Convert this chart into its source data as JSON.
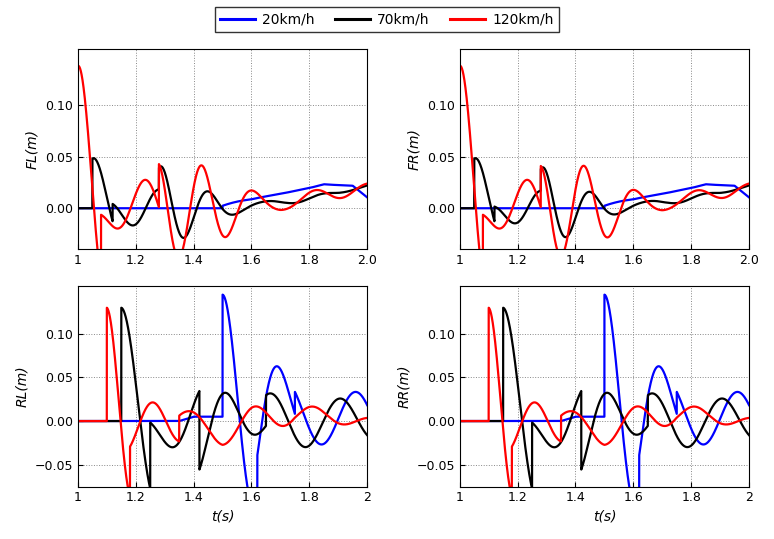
{
  "legend_labels": [
    "20km/h",
    "70km/h",
    "120km/h"
  ],
  "legend_colors": [
    "#0000ff",
    "#000000",
    "#ff0000"
  ],
  "subplot_ylabels": [
    "FL(m)",
    "FR(m)",
    "RL(m)",
    "RR(m)"
  ],
  "xlabel": "t(s)",
  "xlim": [
    1.0,
    2.0
  ],
  "xticks": [
    1.0,
    1.2,
    1.4,
    1.6,
    1.8,
    2.0
  ],
  "fl_ylim": [
    -0.04,
    0.155
  ],
  "fr_ylim": [
    -0.04,
    0.155
  ],
  "rl_ylim": [
    -0.075,
    0.155
  ],
  "rr_ylim": [
    -0.075,
    0.155
  ],
  "fl_yticks": [
    0.0,
    0.05,
    0.1
  ],
  "fr_yticks": [
    0.0,
    0.05,
    0.1
  ],
  "rl_yticks": [
    -0.05,
    0.0,
    0.05,
    0.1
  ],
  "rr_yticks": [
    -0.05,
    0.0,
    0.05,
    0.1
  ],
  "background_color": "#ffffff",
  "grid_color": "#888888",
  "line_width": 1.6
}
